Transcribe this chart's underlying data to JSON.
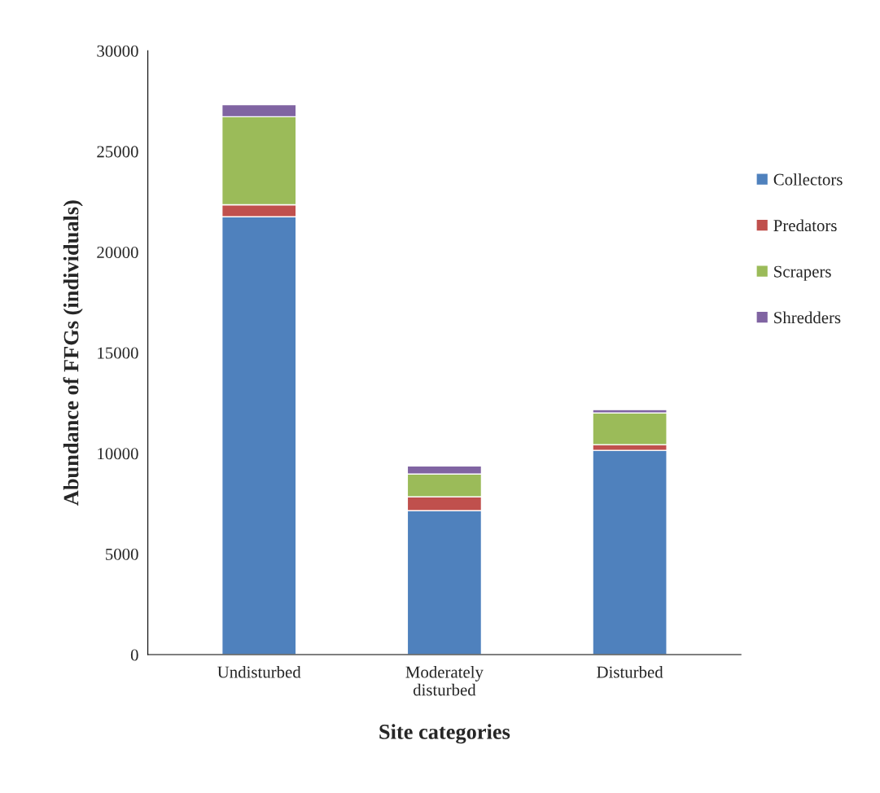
{
  "chart_data": {
    "type": "bar",
    "stacked": true,
    "xlabel": "Site categories",
    "ylabel": "Abundance of FFGs (individuals)",
    "categories": [
      "Undisturbed",
      "Moderately\ndisturbed",
      "Disturbed"
    ],
    "series": [
      {
        "name": "Collectors",
        "color": "#4f81bd",
        "values": [
          21750,
          7150,
          10150
        ]
      },
      {
        "name": "Predators",
        "color": "#c0504d",
        "values": [
          600,
          690,
          280
        ]
      },
      {
        "name": "Scrapers",
        "color": "#9bbb59",
        "values": [
          4370,
          1130,
          1580
        ]
      },
      {
        "name": "Shredders",
        "color": "#8064a2",
        "values": [
          600,
          400,
          160
        ]
      }
    ],
    "ylim": [
      0,
      30000
    ],
    "yticks": [
      0,
      5000,
      10000,
      15000,
      20000,
      25000,
      30000
    ],
    "grid": false,
    "legend": "right"
  }
}
